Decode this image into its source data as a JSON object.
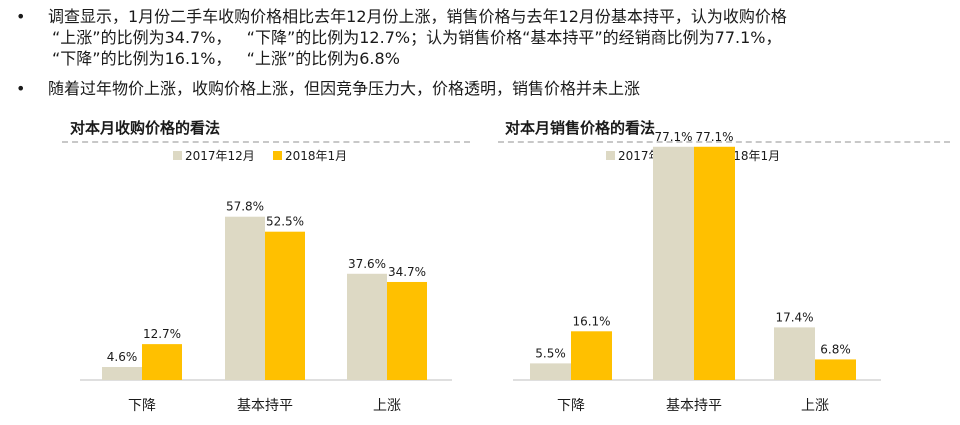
{
  "bullets": [
    {
      "symbol": "•",
      "lines": [
        "调查显示，1月份二手车收购价格相比去年12月份上涨，销售价格与去年12月份基本持平，认为收购价格",
        "“上涨”的比例为34.7%，   “下降”的比例为12.7%；认为销售价格“基本持平”的经销商比例为77.1%，",
        "“下降”的比例为16.1%，   “上涨”的比例为6.8%"
      ]
    },
    {
      "symbol": "•",
      "lines": [
        "随着过年物价上涨，收购价格上涨，但因竞争压力大，价格透明，销售价格并未上涨"
      ]
    }
  ],
  "colors": {
    "series1": "#ddd9c4",
    "series2": "#ffc000",
    "axis": "#bfbfbf",
    "dash": "#c8c8c8"
  },
  "chart_data": [
    {
      "type": "bar",
      "title": "对本月收购价格的看法",
      "categories": [
        "下降",
        "基本持平",
        "上涨"
      ],
      "series": [
        {
          "name": "2017年12月",
          "values": [
            4.6,
            57.8,
            37.6
          ],
          "labels": [
            "4.6%",
            "57.8%",
            "37.6%"
          ]
        },
        {
          "name": "2018年1月",
          "values": [
            12.7,
            52.5,
            34.7
          ],
          "labels": [
            "12.7%",
            "52.5%",
            "34.7%"
          ]
        }
      ],
      "ylim": [
        0,
        80
      ],
      "legend": "top",
      "grid": false
    },
    {
      "type": "bar",
      "title": "对本月销售价格的看法",
      "categories": [
        "下降",
        "基本持平",
        "上涨"
      ],
      "series": [
        {
          "name": "2017年12月",
          "values": [
            5.5,
            77.1,
            17.4
          ],
          "labels": [
            "5.5%",
            "77.1%",
            "17.4%"
          ]
        },
        {
          "name": "2018年1月",
          "values": [
            16.1,
            77.1,
            6.8
          ],
          "labels": [
            "16.1%",
            "77.1%",
            "6.8%"
          ]
        }
      ],
      "ylim": [
        0,
        80
      ],
      "legend": "top",
      "grid": false
    }
  ]
}
